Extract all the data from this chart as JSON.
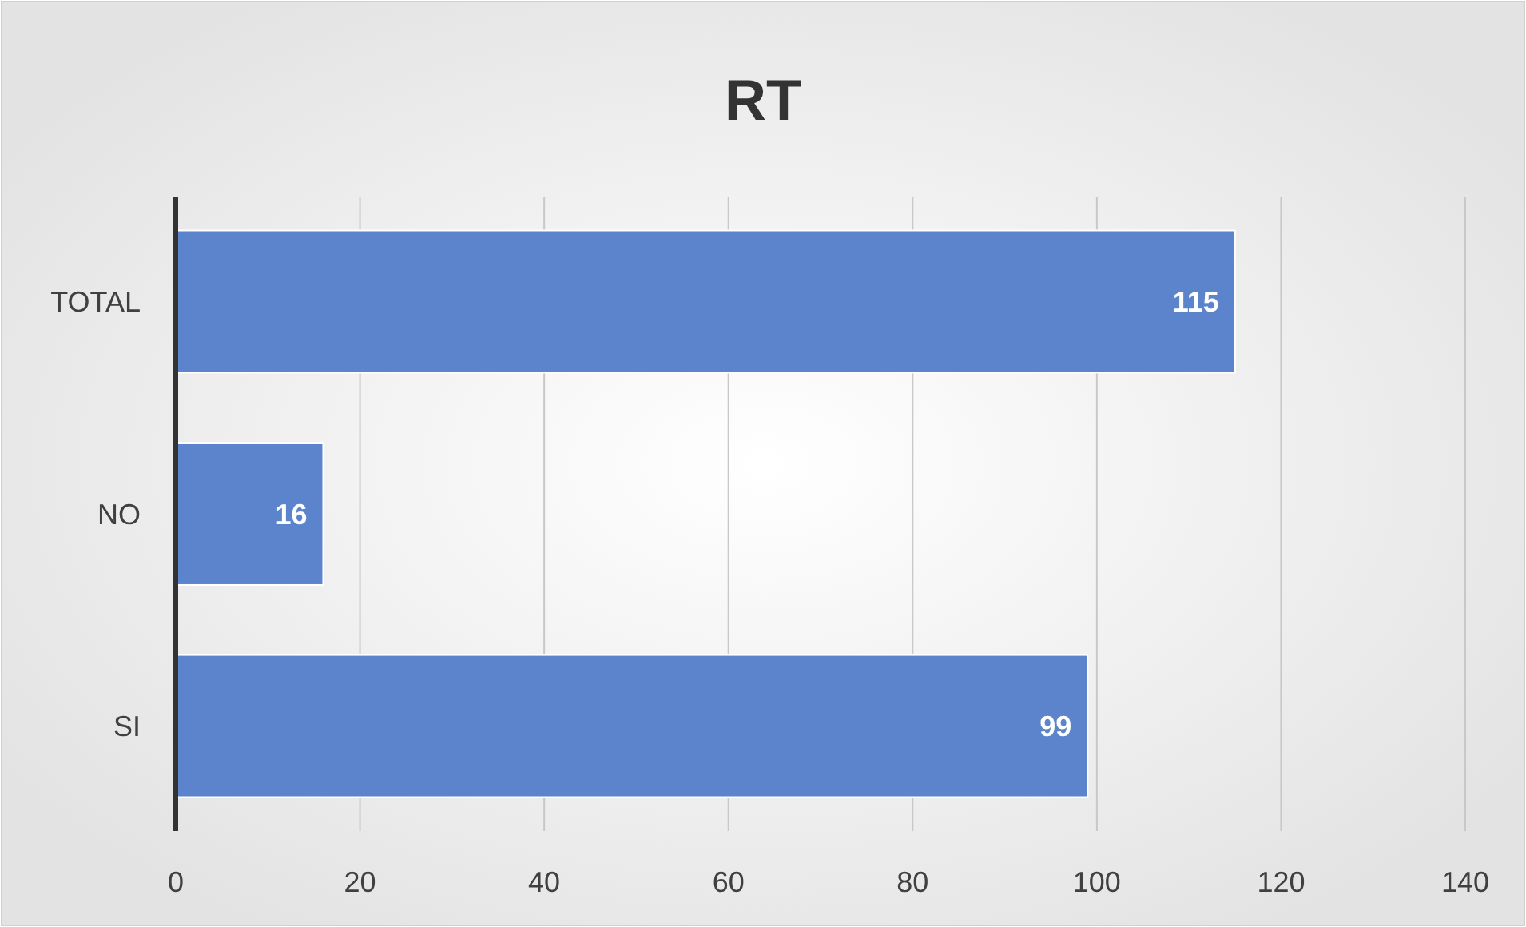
{
  "chart_data": {
    "type": "bar",
    "title": "RT",
    "orientation": "horizontal",
    "categories": [
      "TOTAL",
      "NO",
      "SI"
    ],
    "values": [
      115,
      16,
      99
    ],
    "color": "#5b84cc",
    "xlim": [
      0,
      140
    ],
    "xticks": [
      0,
      20,
      40,
      60,
      80,
      100,
      120,
      140
    ],
    "grid": "x",
    "data_labels": true
  }
}
